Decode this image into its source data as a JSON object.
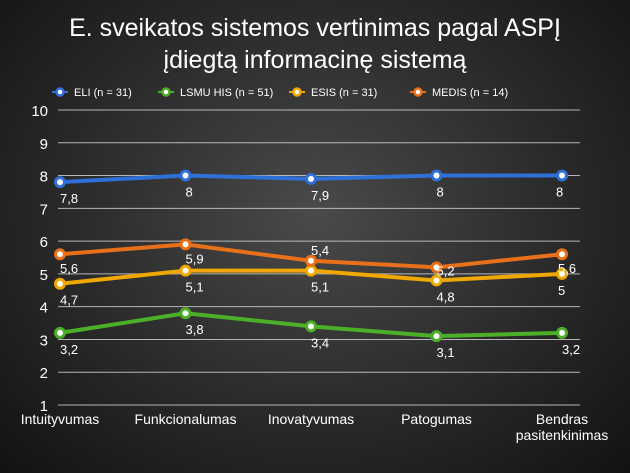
{
  "chart_data": {
    "type": "line",
    "title_lines": [
      "E. sveikatos sistemos vertinimas pagal ASPĮ",
      "įdiegtą informacinę sistemą"
    ],
    "categories": [
      "Intuityvumas",
      "Funkcionalumas",
      "Inovatyvumas",
      "Patogumas",
      "Bendras pasitenkinimas"
    ],
    "category_lines": [
      [
        "Intuityvumas"
      ],
      [
        "Funkcionalumas"
      ],
      [
        "Inovatyvumas"
      ],
      [
        "Patogumas"
      ],
      [
        "Bendras",
        "pasitenkinimas"
      ]
    ],
    "ylim": [
      1,
      10
    ],
    "yticks": [
      "1",
      "2",
      "3",
      "4",
      "5",
      "6",
      "7",
      "8",
      "9",
      "10"
    ],
    "grid": true,
    "legend_position": "top",
    "series": [
      {
        "name": "ELI (n = 31)",
        "color": "#2f6fd8",
        "values": [
          7.8,
          8,
          7.9,
          8,
          8
        ],
        "labels": [
          "7,8",
          "8",
          "7,9",
          "8",
          "8"
        ]
      },
      {
        "name": "LSMU HIS (n = 51)",
        "color": "#4caf28",
        "values": [
          3.2,
          3.8,
          3.4,
          3.1,
          3.2
        ],
        "labels": [
          "3,2",
          "3,8",
          "3,4",
          "3,1",
          "3,2"
        ]
      },
      {
        "name": "ESIS (n = 31)",
        "color": "#f0a800",
        "values": [
          4.7,
          5.1,
          5.1,
          4.8,
          5
        ],
        "labels": [
          "4,7",
          "5,1",
          "5,1",
          "4,8",
          "5"
        ]
      },
      {
        "name": "MEDIS (n = 14)",
        "color": "#e8701a",
        "values": [
          5.6,
          5.9,
          5.4,
          5.2,
          5.6
        ],
        "labels": [
          "5,6",
          "5,9",
          "5,4",
          "5,2",
          "5,6"
        ]
      }
    ]
  }
}
